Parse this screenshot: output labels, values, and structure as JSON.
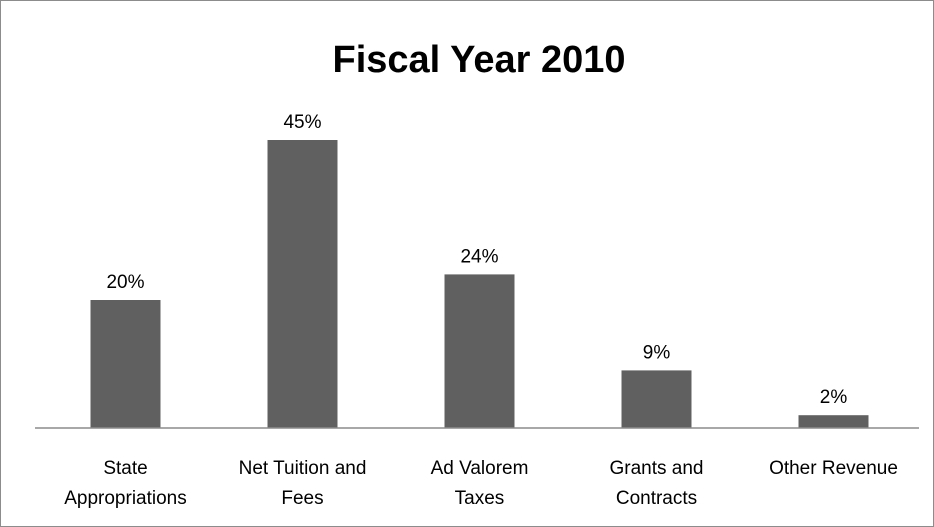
{
  "chart_data": {
    "type": "bar",
    "title": "Fiscal Year 2010",
    "categories": [
      [
        "State",
        "Appropriations"
      ],
      [
        "Net Tuition and",
        "Fees"
      ],
      [
        "Ad Valorem",
        "Taxes"
      ],
      [
        "Grants and",
        "Contracts"
      ],
      [
        "Other Revenue"
      ]
    ],
    "values": [
      20,
      45,
      24,
      9,
      2
    ],
    "value_labels": [
      "20%",
      "45%",
      "24%",
      "9%",
      "2%"
    ],
    "unit": "%",
    "xlabel": "",
    "ylabel": "",
    "ylim": [
      0,
      50
    ],
    "grid": false,
    "legend": "none",
    "colors": {
      "bar": "#606060",
      "axis": "#8c8c8c",
      "text": "#000000"
    }
  }
}
